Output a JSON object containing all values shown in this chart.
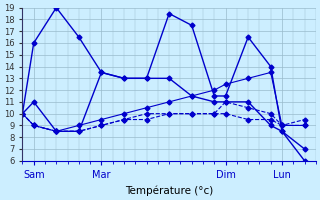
{
  "xlabel": "Température (°c)",
  "background_color": "#cceeff",
  "grid_color": "#99bbcc",
  "line_color": "#0000cc",
  "ylim": [
    6,
    19
  ],
  "yticks": [
    6,
    7,
    8,
    9,
    10,
    11,
    12,
    13,
    14,
    15,
    16,
    17,
    18,
    19
  ],
  "xlim": [
    0,
    26
  ],
  "x_tick_positions": [
    1,
    7,
    18,
    23
  ],
  "x_tick_labels": [
    "Sam",
    "Mar",
    "Dim",
    "Lun"
  ],
  "lines": [
    {
      "x": [
        0,
        1,
        3,
        5,
        7,
        9,
        11,
        13,
        15,
        17,
        18,
        20,
        22,
        23,
        25
      ],
      "y": [
        10,
        16,
        19,
        16.5,
        13.5,
        13,
        13,
        18.5,
        17.5,
        11.5,
        11.5,
        16.5,
        14,
        8.5,
        6
      ],
      "style": "-",
      "lw": 1.0
    },
    {
      "x": [
        0,
        1,
        3,
        5,
        7,
        9,
        11,
        13,
        15,
        17,
        18,
        20,
        22,
        23,
        25
      ],
      "y": [
        10,
        9,
        8.5,
        8.5,
        9,
        9.5,
        10,
        10,
        10,
        10,
        10,
        9.5,
        9.5,
        9,
        9
      ],
      "style": "--",
      "lw": 0.8
    },
    {
      "x": [
        0,
        1,
        3,
        5,
        7,
        9,
        11,
        13,
        15,
        17,
        18,
        20,
        22,
        23,
        25
      ],
      "y": [
        10,
        9,
        8.5,
        9,
        9.5,
        10,
        10.5,
        11,
        11.5,
        12,
        12.5,
        13,
        13.5,
        9,
        9
      ],
      "style": "-",
      "lw": 0.8
    },
    {
      "x": [
        0,
        1,
        3,
        5,
        7,
        9,
        11,
        13,
        15,
        17,
        18,
        20,
        22,
        23,
        25
      ],
      "y": [
        10,
        9,
        8.5,
        8.5,
        9,
        9.5,
        9.5,
        10,
        10,
        10,
        11,
        10.5,
        10,
        9,
        9.5
      ],
      "style": "--",
      "lw": 0.8
    },
    {
      "x": [
        0,
        1,
        3,
        5,
        7,
        9,
        11,
        13,
        15,
        17,
        18,
        20,
        22,
        23,
        25
      ],
      "y": [
        10,
        11,
        8.5,
        8.5,
        13.5,
        13,
        13,
        13,
        11.5,
        11,
        11,
        11,
        9,
        8.5,
        7
      ],
      "style": "-",
      "lw": 1.0
    }
  ]
}
